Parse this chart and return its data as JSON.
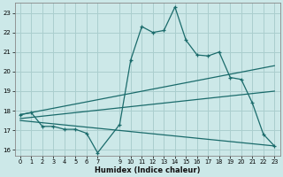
{
  "xlabel": "Humidex (Indice chaleur)",
  "bg_color": "#cce8e8",
  "grid_color": "#aacece",
  "line_color": "#1a6b6b",
  "xlim": [
    -0.5,
    23.5
  ],
  "ylim": [
    15.7,
    23.5
  ],
  "xticks": [
    0,
    1,
    2,
    3,
    4,
    5,
    6,
    7,
    9,
    10,
    11,
    12,
    13,
    14,
    15,
    16,
    17,
    18,
    19,
    20,
    21,
    22,
    23
  ],
  "yticks": [
    16,
    17,
    18,
    19,
    20,
    21,
    22,
    23
  ],
  "line1_x": [
    0,
    1,
    2,
    3,
    4,
    5,
    6,
    7,
    9,
    10,
    11,
    12,
    13,
    14,
    15,
    16,
    17,
    18,
    19,
    20,
    21,
    22,
    23
  ],
  "line1_y": [
    17.8,
    17.9,
    17.2,
    17.2,
    17.05,
    17.05,
    16.85,
    15.85,
    17.3,
    20.6,
    22.3,
    22.0,
    22.1,
    23.3,
    21.6,
    20.85,
    20.8,
    21.0,
    19.7,
    19.6,
    18.4,
    16.8,
    16.2
  ],
  "line2_x": [
    0,
    23
  ],
  "line2_y": [
    17.8,
    20.3
  ],
  "line3_x": [
    0,
    23
  ],
  "line3_y": [
    17.5,
    16.2
  ],
  "line4_x": [
    0,
    23
  ],
  "line4_y": [
    17.6,
    19.0
  ]
}
